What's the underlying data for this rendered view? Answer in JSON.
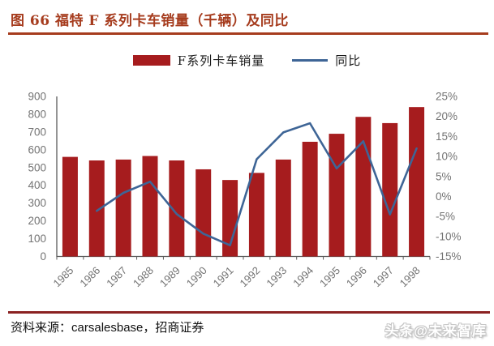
{
  "header": {
    "title": "图 66 福特 F 系列卡车销量（千辆）及同比",
    "accent_color": "#A63C1E"
  },
  "legend": {
    "items": [
      {
        "label": "F系列卡车销量",
        "swatch": "bar",
        "color": "#A61C1E"
      },
      {
        "label": "同比",
        "swatch": "line",
        "color": "#3E6596"
      }
    ]
  },
  "chart_data": {
    "type": "bar",
    "title": "图 66 福特 F 系列卡车销量（千辆）及同比",
    "categories": [
      "1985",
      "1986",
      "1987",
      "1988",
      "1989",
      "1990",
      "1991",
      "1992",
      "1993",
      "1994",
      "1995",
      "1996",
      "1997",
      "1998"
    ],
    "series": [
      {
        "name": "F系列卡车销量",
        "type": "bar",
        "axis": "left",
        "color": "#A61C1E",
        "values": [
          560,
          540,
          545,
          565,
          540,
          490,
          430,
          470,
          545,
          645,
          690,
          785,
          750,
          840
        ]
      },
      {
        "name": "同比",
        "type": "line",
        "axis": "right",
        "color": "#3E6596",
        "values": [
          null,
          -3.6,
          0.9,
          3.7,
          -4.4,
          -9.3,
          -12.2,
          9.3,
          16.0,
          18.3,
          7.0,
          13.8,
          -4.5,
          12.0
        ]
      }
    ],
    "left_axis": {
      "min": 0,
      "max": 900,
      "step": 100,
      "tick_labels": [
        "0",
        "100",
        "200",
        "300",
        "400",
        "500",
        "600",
        "700",
        "800",
        "900"
      ]
    },
    "right_axis": {
      "min": -15,
      "max": 25,
      "step": 5,
      "tick_labels": [
        "-15%",
        "-10%",
        "-5%",
        "0%",
        "5%",
        "10%",
        "15%",
        "20%",
        "25%"
      ]
    },
    "grid": false,
    "legend_position": "top",
    "axis_text_color": "#737373"
  },
  "footer": {
    "prefix": "资料来源：",
    "source": "carsalesbase",
    "suffix": "，招商证券"
  },
  "watermark": {
    "text": "头条@未来智库"
  }
}
